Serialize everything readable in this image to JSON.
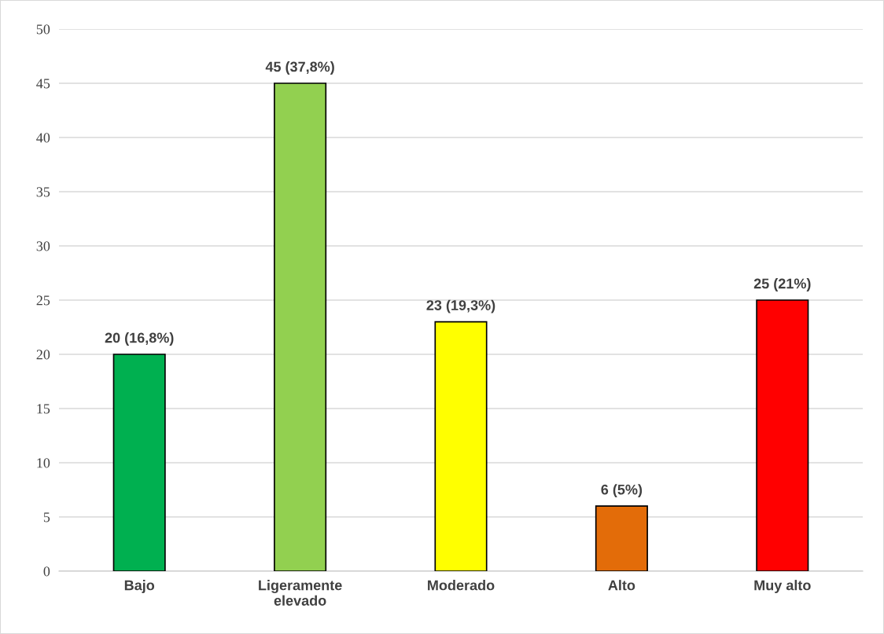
{
  "chart_data": {
    "type": "bar",
    "categories": [
      "Bajo",
      "Ligeramente\nelevado",
      "Moderado",
      "Alto",
      "Muy alto"
    ],
    "values": [
      20,
      45,
      23,
      6,
      25
    ],
    "colors": [
      "#00b050",
      "#92d050",
      "#ffff00",
      "#e36c09",
      "#ff0000"
    ],
    "value_labels": [
      "20 (16,8%)",
      "45 (37,8%)",
      "23 (19,3%)",
      "6 (5%)",
      "25 (21%)"
    ],
    "ylim": [
      0,
      50
    ],
    "yticks": [
      0,
      5,
      10,
      15,
      20,
      25,
      30,
      35,
      40,
      45,
      50
    ],
    "grid": "y",
    "legend": false
  }
}
